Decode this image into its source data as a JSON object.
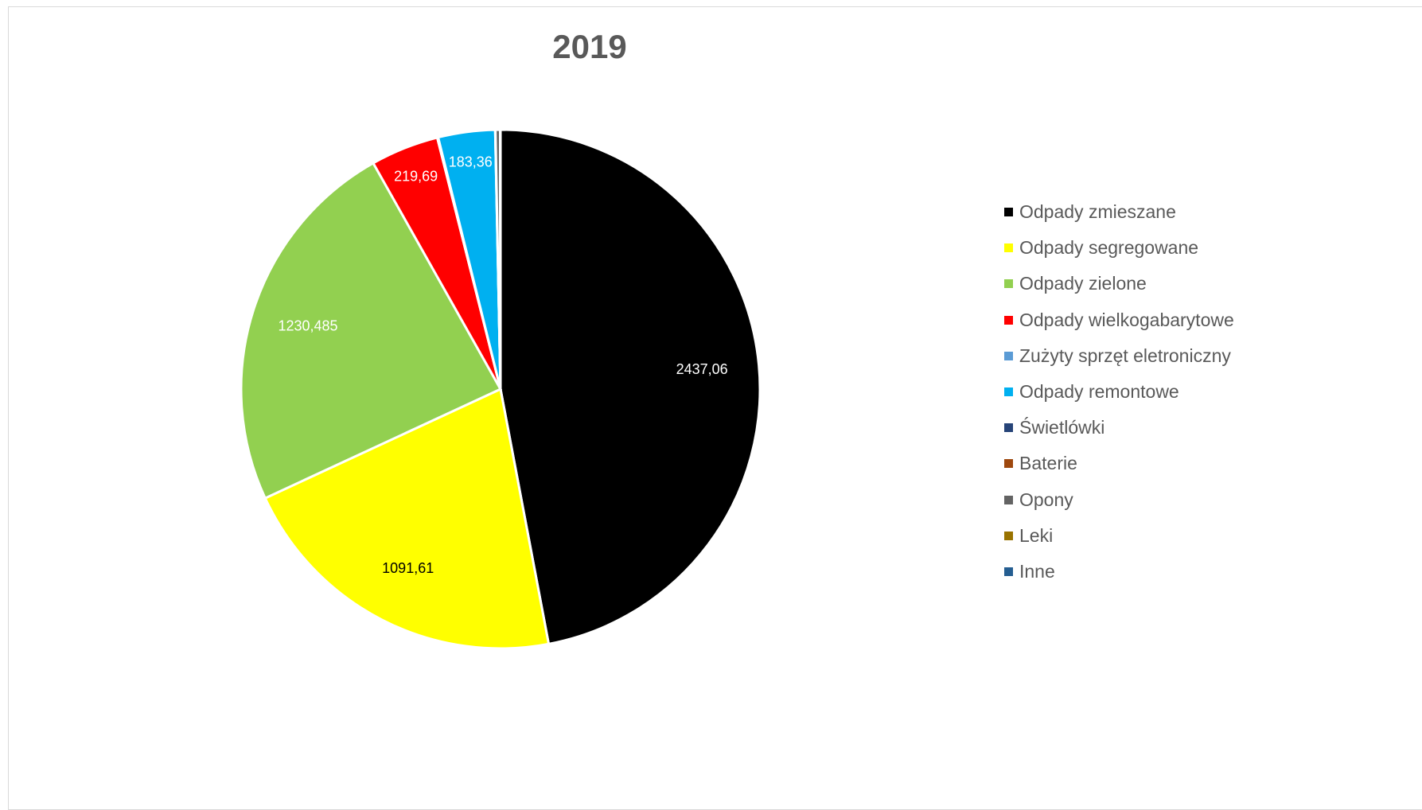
{
  "chart_data": {
    "type": "pie",
    "title": "2019",
    "categories": [
      "Odpady zmieszane",
      "Odpady segregowane",
      "Odpady zielone",
      "Odpady wielkogabarytowe",
      "Zużyty sprzęt eletroniczny",
      "Odpady remontowe",
      "Świetlówki",
      "Baterie",
      "Opony",
      "Leki",
      "Inne"
    ],
    "values": [
      2437.06,
      1091.61,
      1230.485,
      219.69,
      3,
      183.36,
      0.5,
      0.3,
      15,
      0.2,
      1
    ],
    "data_labels": [
      "2437,06",
      "1091,61",
      "1230,485",
      "219,69",
      "",
      "183,36",
      "",
      "",
      "",
      "",
      ""
    ],
    "colors": [
      "#000000",
      "#ffff00",
      "#92d050",
      "#ff0000",
      "#5b9bd5",
      "#00b0f0",
      "#264478",
      "#9e480e",
      "#636363",
      "#997300",
      "#255e91"
    ],
    "label_colors": [
      "#ffffff",
      "#000000",
      "#ffffff",
      "#ffffff",
      "#ffffff",
      "#ffffff",
      "#ffffff",
      "#ffffff",
      "#ffffff",
      "#ffffff",
      "#ffffff"
    ],
    "legend_position": "right",
    "start_angle_deg": 0,
    "direction": "clockwise"
  }
}
